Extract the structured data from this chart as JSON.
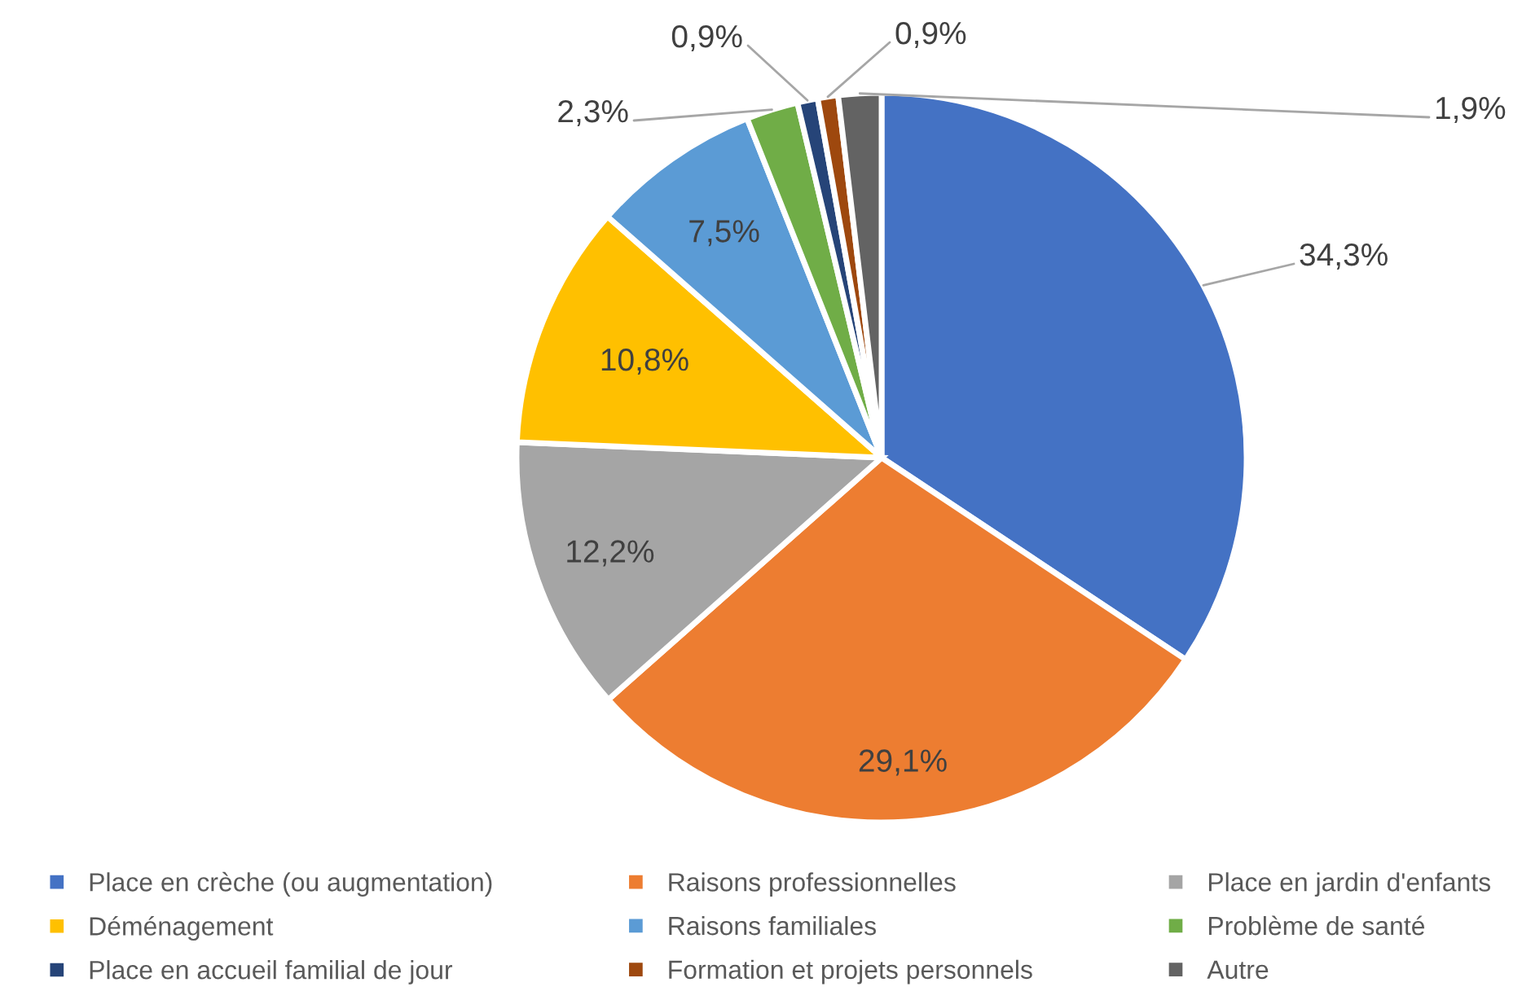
{
  "chart_data": {
    "type": "pie",
    "categories": [
      "Place en crèche (ou augmentation)",
      "Raisons professionnelles",
      "Place en jardin d'enfants",
      "Déménagement",
      "Raisons familiales",
      "Problème de santé",
      "Place en accueil familial de jour",
      "Formation et projets personnels",
      "Autre"
    ],
    "values": [
      34.3,
      29.1,
      12.2,
      10.8,
      7.5,
      2.3,
      0.9,
      0.9,
      1.9
    ],
    "colors": [
      "#4472c4",
      "#ed7d31",
      "#a5a5a5",
      "#ffc000",
      "#5b9bd5",
      "#70ad47",
      "#264478",
      "#9e480e",
      "#636363"
    ],
    "value_labels": [
      "34,3%",
      "29,1%",
      "12,2%",
      "10,8%",
      "7,5%",
      "2,3%",
      "0,9%",
      "0,9%",
      "1,9%"
    ],
    "legend": "bottom"
  }
}
